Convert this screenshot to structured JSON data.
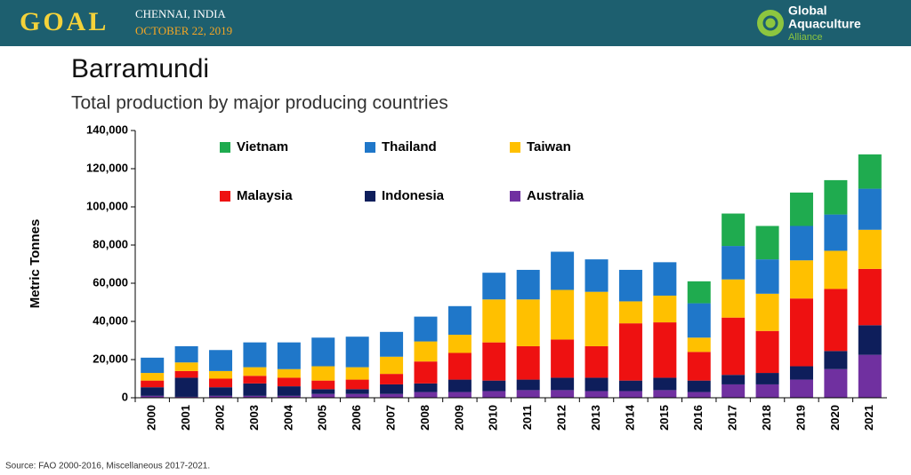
{
  "header": {
    "event": "GOAL",
    "city": "CHENNAI, INDIA",
    "date": "OCTOBER 22, 2019",
    "logo_line1": "Global",
    "logo_line2": "Aquaculture",
    "logo_line3": "Alliance"
  },
  "chart_data": {
    "type": "stacked_bar",
    "title": "Barramundi",
    "subtitle": "Total production by major producing countries",
    "y_label": "Metric Tonnes",
    "source": "Source: FAO 2000-2016, Miscellaneous 2017-2021.",
    "categories": [
      "2000",
      "2001",
      "2002",
      "2003",
      "2004",
      "2005",
      "2006",
      "2007",
      "2008",
      "2009",
      "2010",
      "2011",
      "2012",
      "2013",
      "2014",
      "2015",
      "2016",
      "2017",
      "2018",
      "2019",
      "2020",
      "2021"
    ],
    "series": [
      {
        "name": "Australia",
        "color": "#7030a0",
        "values": [
          1000,
          500,
          1000,
          1000,
          1000,
          2000,
          2000,
          2000,
          3000,
          3000,
          3500,
          4000,
          4000,
          3500,
          3500,
          4000,
          3000,
          7000,
          7000,
          9500,
          15000,
          22500
        ]
      },
      {
        "name": "Indonesia",
        "color": "#0e1e5b",
        "values": [
          4500,
          10000,
          4500,
          6500,
          5000,
          2500,
          2500,
          5000,
          4500,
          6500,
          5500,
          5500,
          6500,
          7000,
          5500,
          6500,
          6000,
          5000,
          6000,
          7000,
          9500,
          15500
        ]
      },
      {
        "name": "Malaysia",
        "color": "#ee1111",
        "values": [
          3500,
          3500,
          4500,
          4000,
          4500,
          4500,
          5000,
          5500,
          11500,
          14000,
          20000,
          17500,
          20000,
          16500,
          30000,
          29000,
          15000,
          30000,
          22000,
          35500,
          32500,
          29500
        ]
      },
      {
        "name": "Taiwan",
        "color": "#ffc000",
        "values": [
          4000,
          4500,
          4000,
          4500,
          4500,
          7500,
          6500,
          9000,
          10500,
          9500,
          22500,
          24500,
          26000,
          28500,
          11500,
          14000,
          7500,
          20000,
          19500,
          20000,
          20000,
          20500
        ]
      },
      {
        "name": "Thailand",
        "color": "#1f77c9",
        "values": [
          8000,
          8500,
          11000,
          13000,
          14000,
          15000,
          16000,
          13000,
          13000,
          15000,
          14000,
          15500,
          20000,
          17000,
          16500,
          17500,
          18000,
          17500,
          18000,
          18000,
          19000,
          21500
        ]
      },
      {
        "name": "Vietnam",
        "color": "#1fab4f",
        "values": [
          null,
          null,
          null,
          null,
          null,
          null,
          null,
          null,
          null,
          null,
          null,
          null,
          null,
          null,
          null,
          null,
          11500,
          17000,
          17500,
          17500,
          18000,
          18000
        ]
      }
    ],
    "ylim": [
      0,
      140000
    ],
    "yticks": [
      0,
      {
        "value": 20000,
        "label": "20,000"
      },
      {
        "value": 40000,
        "label": "40,000"
      },
      {
        "value": 60000,
        "label": "60,000"
      },
      {
        "value": 80000,
        "label": "80,000"
      },
      {
        "value": 100000,
        "label": "100,000"
      },
      {
        "value": 120000,
        "label": "120,000"
      },
      {
        "value": 140000,
        "label": "140,000"
      }
    ],
    "grid": false
  }
}
